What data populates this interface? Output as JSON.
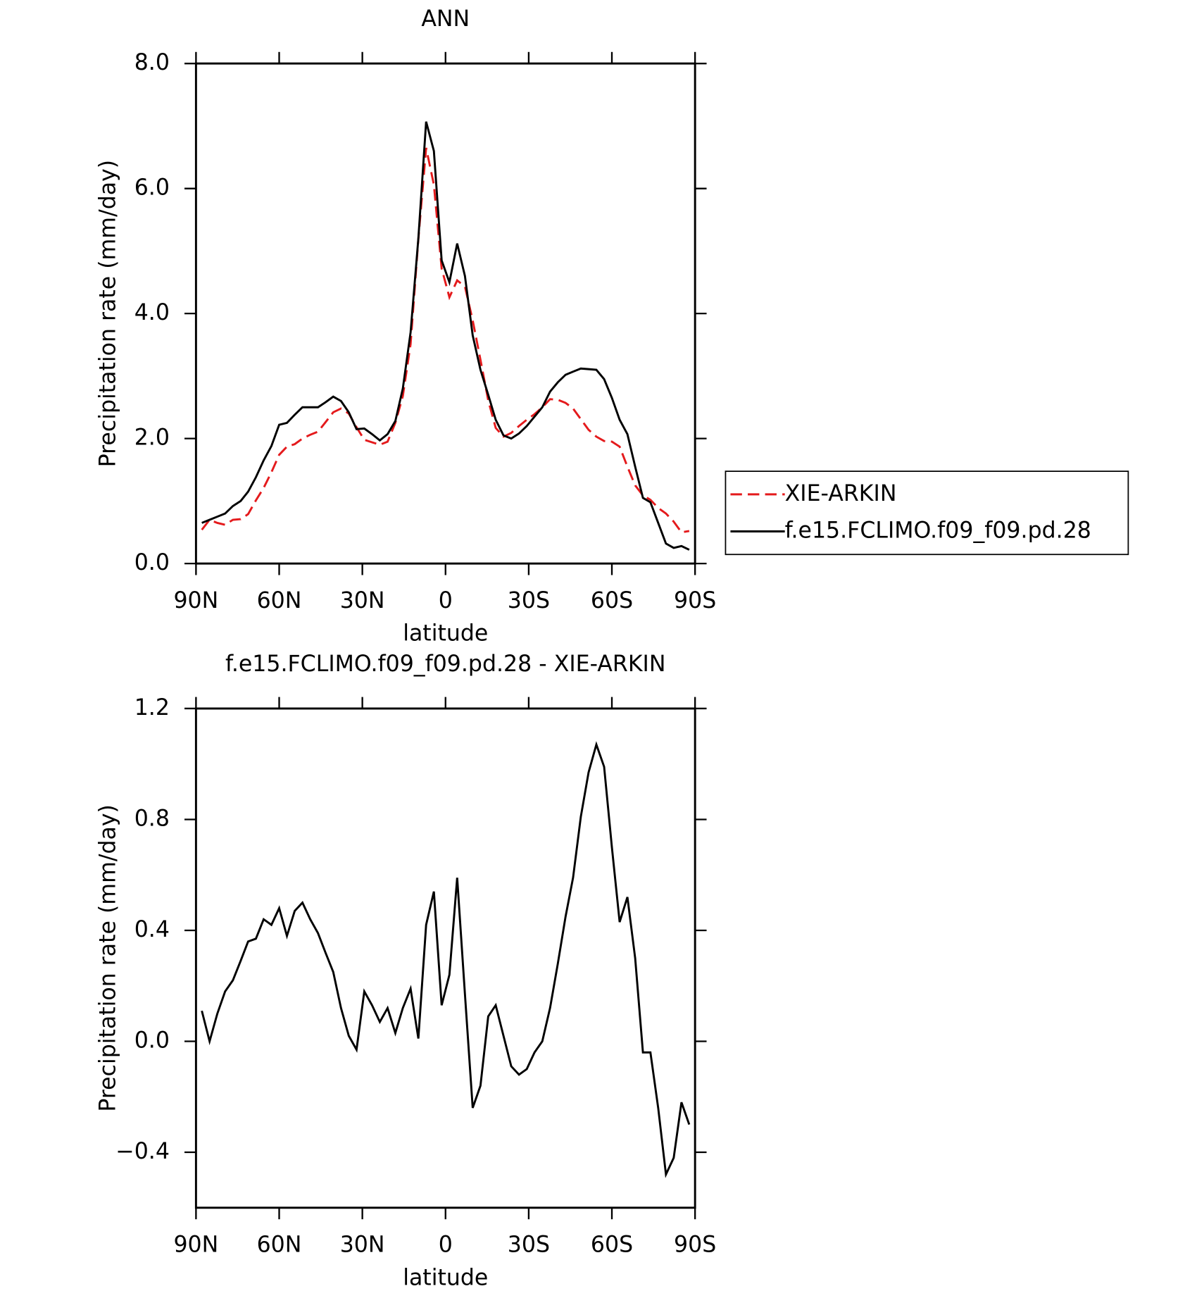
{
  "chart_data": [
    {
      "type": "line",
      "title": "ANN",
      "xlabel": "latitude",
      "ylabel": "Precipitation rate (mm/day)",
      "x": [
        87.9,
        85.1,
        82.3,
        79.5,
        76.7,
        73.9,
        71.2,
        68.4,
        65.6,
        62.8,
        60.0,
        57.2,
        54.4,
        51.6,
        48.8,
        46.0,
        43.3,
        40.5,
        37.7,
        34.9,
        32.1,
        29.3,
        26.5,
        23.7,
        20.9,
        18.1,
        15.4,
        12.6,
        9.8,
        7.0,
        4.2,
        1.4,
        -1.4,
        -4.2,
        -7.0,
        -9.8,
        -12.6,
        -15.4,
        -18.1,
        -20.9,
        -23.7,
        -26.5,
        -29.3,
        -32.1,
        -34.9,
        -37.7,
        -40.5,
        -43.3,
        -46.0,
        -48.8,
        -51.6,
        -54.4,
        -57.2,
        -60.0,
        -62.8,
        -65.6,
        -68.4,
        -71.2,
        -73.9,
        -76.7,
        -79.5,
        -82.3,
        -85.1,
        -87.9
      ],
      "series": [
        {
          "name": "XIE-ARKIN",
          "color": "#e41a1c",
          "dash": true,
          "values": [
            0.54,
            0.7,
            0.65,
            0.62,
            0.7,
            0.71,
            0.79,
            1.01,
            1.21,
            1.46,
            1.74,
            1.87,
            1.91,
            2.0,
            2.06,
            2.11,
            2.26,
            2.42,
            2.48,
            2.4,
            2.18,
            1.98,
            1.94,
            1.9,
            1.95,
            2.25,
            2.68,
            3.51,
            5.19,
            6.65,
            6.06,
            4.72,
            4.26,
            4.53,
            4.43,
            3.89,
            3.26,
            2.61,
            2.17,
            2.03,
            2.09,
            2.2,
            2.3,
            2.39,
            2.5,
            2.63,
            2.62,
            2.57,
            2.48,
            2.31,
            2.14,
            2.03,
            1.96,
            1.95,
            1.87,
            1.55,
            1.25,
            1.09,
            1.02,
            0.89,
            0.8,
            0.67,
            0.5,
            0.52
          ]
        },
        {
          "name": "f.e15.FCLIMO.f09_f09.pd.28",
          "color": "#000000",
          "dash": false,
          "values": [
            0.65,
            0.7,
            0.75,
            0.8,
            0.92,
            1.0,
            1.15,
            1.38,
            1.65,
            1.88,
            2.22,
            2.25,
            2.38,
            2.5,
            2.5,
            2.5,
            2.58,
            2.67,
            2.6,
            2.42,
            2.15,
            2.16,
            2.07,
            1.97,
            2.07,
            2.28,
            2.8,
            3.7,
            5.2,
            7.07,
            6.6,
            4.85,
            4.5,
            5.12,
            4.6,
            3.65,
            3.1,
            2.7,
            2.3,
            2.05,
            2.0,
            2.08,
            2.2,
            2.35,
            2.5,
            2.75,
            2.9,
            3.02,
            3.07,
            3.12,
            3.11,
            3.1,
            2.95,
            2.65,
            2.3,
            2.07,
            1.55,
            1.05,
            0.98,
            0.65,
            0.32,
            0.25,
            0.28,
            0.22
          ]
        }
      ],
      "xlim": [
        90,
        -90
      ],
      "xticks": [
        {
          "value": 90,
          "label": "90N"
        },
        {
          "value": 60,
          "label": "60N"
        },
        {
          "value": 30,
          "label": "30N"
        },
        0,
        {
          "value": -30,
          "label": "30S"
        },
        {
          "value": -60,
          "label": "60S"
        },
        {
          "value": -90,
          "label": "90S"
        }
      ],
      "ylim": [
        0,
        8
      ],
      "yticks": [
        {
          "value": 0,
          "label": "0.0"
        },
        {
          "value": 2,
          "label": "2.0"
        },
        {
          "value": 4,
          "label": "4.0"
        },
        {
          "value": 6,
          "label": "6.0"
        },
        {
          "value": 8,
          "label": "8.0"
        }
      ],
      "legend": "right"
    },
    {
      "type": "line",
      "title": "f.e15.FCLIMO.f09_f09.pd.28 - XIE-ARKIN",
      "xlabel": "latitude",
      "ylabel": "Precipitation rate (mm/day)",
      "x": [
        87.9,
        85.1,
        82.3,
        79.5,
        76.7,
        73.9,
        71.2,
        68.4,
        65.6,
        62.8,
        60.0,
        57.2,
        54.4,
        51.6,
        48.8,
        46.0,
        43.3,
        40.5,
        37.7,
        34.9,
        32.1,
        29.3,
        26.5,
        23.7,
        20.9,
        18.1,
        15.4,
        12.6,
        9.8,
        7.0,
        4.2,
        1.4,
        -1.4,
        -4.2,
        -7.0,
        -9.8,
        -12.6,
        -15.4,
        -18.1,
        -20.9,
        -23.7,
        -26.5,
        -29.3,
        -32.1,
        -34.9,
        -37.7,
        -40.5,
        -43.3,
        -46.0,
        -48.8,
        -51.6,
        -54.4,
        -57.2,
        -60.0,
        -62.8,
        -65.6,
        -68.4,
        -71.2,
        -73.9,
        -76.7,
        -79.5,
        -82.3,
        -85.1,
        -87.9
      ],
      "series": [
        {
          "color": "#000000",
          "dash": false,
          "values": [
            0.11,
            0.0,
            0.1,
            0.18,
            0.22,
            0.29,
            0.36,
            0.37,
            0.44,
            0.42,
            0.48,
            0.38,
            0.47,
            0.5,
            0.44,
            0.39,
            0.32,
            0.25,
            0.12,
            0.02,
            -0.03,
            0.18,
            0.13,
            0.07,
            0.12,
            0.03,
            0.12,
            0.19,
            0.01,
            0.42,
            0.54,
            0.13,
            0.24,
            0.59,
            0.17,
            -0.24,
            -0.16,
            0.09,
            0.13,
            0.02,
            -0.09,
            -0.12,
            -0.1,
            -0.04,
            0.0,
            0.12,
            0.28,
            0.45,
            0.59,
            0.81,
            0.97,
            1.07,
            0.99,
            0.7,
            0.43,
            0.52,
            0.3,
            -0.04,
            -0.04,
            -0.24,
            -0.48,
            -0.42,
            -0.22,
            -0.3
          ]
        }
      ],
      "xlim": [
        90,
        -90
      ],
      "xticks": [
        {
          "value": 90,
          "label": "90N"
        },
        {
          "value": 60,
          "label": "60N"
        },
        {
          "value": 30,
          "label": "30N"
        },
        0,
        {
          "value": -30,
          "label": "30S"
        },
        {
          "value": -60,
          "label": "60S"
        },
        {
          "value": -90,
          "label": "90S"
        }
      ],
      "ylim": [
        -0.6,
        1.2
      ],
      "yticks": [
        {
          "value": -0.4,
          "label": "−0.4"
        },
        {
          "value": 0,
          "label": "0.0"
        },
        0.4,
        0.8,
        1.2
      ]
    }
  ]
}
